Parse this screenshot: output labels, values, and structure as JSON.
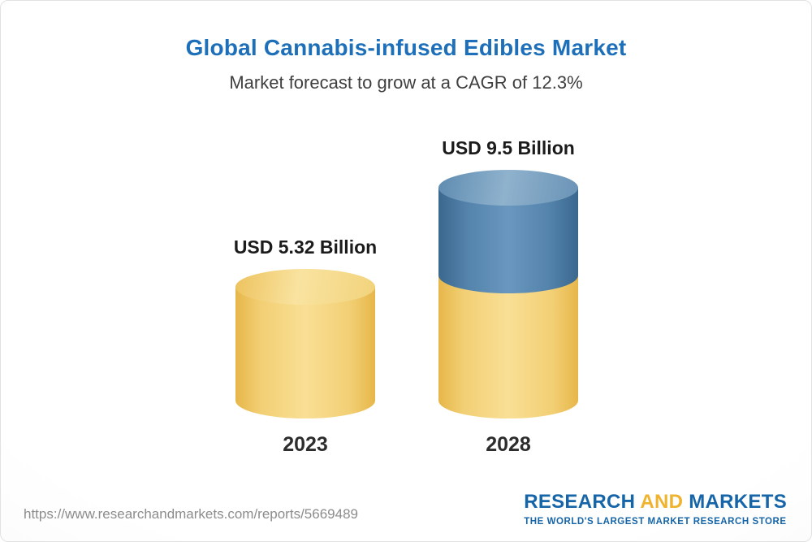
{
  "header": {
    "title": "Global Cannabis-infused Edibles Market",
    "subtitle": "Market forecast to grow at a CAGR of 12.3%"
  },
  "chart_data": {
    "type": "bar",
    "categories": [
      "2023",
      "2028"
    ],
    "values": [
      5.32,
      9.5
    ],
    "value_labels": [
      "USD 5.32 Billion",
      "USD 9.5 Billion"
    ],
    "unit": "USD Billion",
    "cagr_percent": 12.3,
    "title": "Global Cannabis-infused Edibles Market",
    "subtitle": "Market forecast to grow at a CAGR of 12.3%",
    "ylim": [
      0,
      10
    ],
    "grid": false,
    "axes_shown": false,
    "label_position": "above-bar",
    "bar_style": "3d-cylinder",
    "colors": {
      "bar_2023": "#f3cf74",
      "bar_2028_base": "#f3cf74",
      "bar_2028_growth": "#5584ac",
      "title_text": "#1c6fb8",
      "value_text": "#1b1b1b"
    }
  },
  "footer": {
    "url": "https://www.researchandmarkets.com/reports/5669489",
    "logo": {
      "word1": "RESEARCH",
      "word2": "AND",
      "word3": "MARKETS",
      "tagline": "THE WORLD'S LARGEST MARKET RESEARCH STORE"
    }
  }
}
